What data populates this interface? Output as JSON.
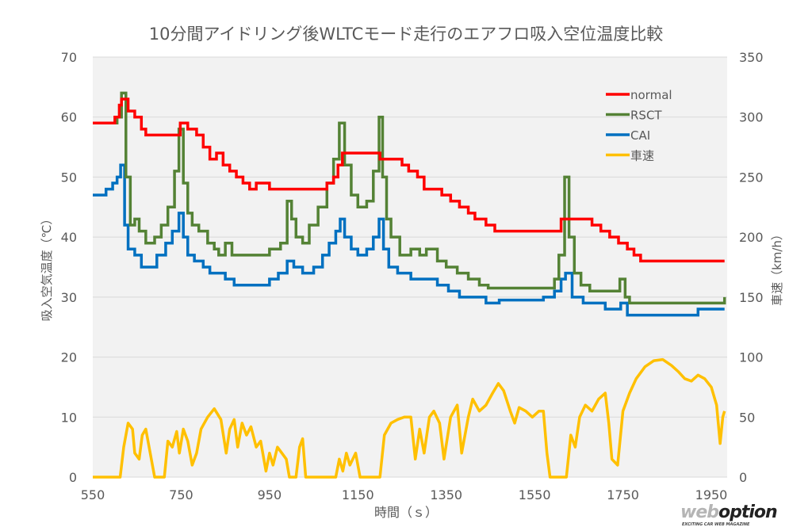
{
  "chart_data": {
    "type": "line",
    "title": "10分間アイドリング後WLTCモード走行のエアフロ吸入空位温度比較",
    "xlabel": "時間（ｓ）",
    "ylabel": "吸入空気温度（℃）",
    "y2label": "車速（km/h）",
    "xlim": [
      550,
      1980
    ],
    "ylim": [
      0,
      70
    ],
    "y2lim": [
      0,
      350
    ],
    "xticks": [
      "550",
      "750",
      "950",
      "1150",
      "1350",
      "1550",
      "1750",
      "1950"
    ],
    "yticks": [
      "0",
      "10",
      "20",
      "30",
      "40",
      "50",
      "60",
      "70"
    ],
    "y2ticks": [
      "0",
      "50",
      "100",
      "150",
      "200",
      "250",
      "300",
      "350"
    ],
    "grid": "horizontal",
    "legend": "top-right",
    "series": [
      {
        "name": "normal",
        "color": "#ff0000",
        "axis": "left",
        "points": [
          [
            550,
            59
          ],
          [
            600,
            60
          ],
          [
            610,
            62
          ],
          [
            615,
            63
          ],
          [
            630,
            61
          ],
          [
            645,
            60
          ],
          [
            660,
            58
          ],
          [
            670,
            57
          ],
          [
            740,
            57
          ],
          [
            748,
            59
          ],
          [
            765,
            58
          ],
          [
            785,
            57
          ],
          [
            800,
            55
          ],
          [
            815,
            53
          ],
          [
            830,
            54
          ],
          [
            845,
            52
          ],
          [
            860,
            51
          ],
          [
            875,
            50
          ],
          [
            890,
            49
          ],
          [
            905,
            48
          ],
          [
            920,
            49
          ],
          [
            950,
            48
          ],
          [
            1050,
            48
          ],
          [
            1080,
            49
          ],
          [
            1095,
            50
          ],
          [
            1105,
            52
          ],
          [
            1115,
            54
          ],
          [
            1190,
            54
          ],
          [
            1200,
            53
          ],
          [
            1240,
            53
          ],
          [
            1250,
            52
          ],
          [
            1265,
            51
          ],
          [
            1285,
            50
          ],
          [
            1300,
            48
          ],
          [
            1320,
            48
          ],
          [
            1340,
            47
          ],
          [
            1360,
            46
          ],
          [
            1380,
            45
          ],
          [
            1400,
            44
          ],
          [
            1415,
            43
          ],
          [
            1440,
            42
          ],
          [
            1460,
            41
          ],
          [
            1600,
            41
          ],
          [
            1610,
            43
          ],
          [
            1660,
            43
          ],
          [
            1680,
            42
          ],
          [
            1700,
            41
          ],
          [
            1720,
            40
          ],
          [
            1740,
            39
          ],
          [
            1760,
            38
          ],
          [
            1775,
            37
          ],
          [
            1790,
            36
          ],
          [
            1980,
            36
          ]
        ]
      },
      {
        "name": "RSCT",
        "color": "#548235",
        "axis": "left",
        "points": [
          [
            550,
            59
          ],
          [
            595,
            59
          ],
          [
            605,
            60
          ],
          [
            615,
            64
          ],
          [
            625,
            50
          ],
          [
            635,
            42
          ],
          [
            645,
            43
          ],
          [
            655,
            41
          ],
          [
            670,
            39
          ],
          [
            690,
            40
          ],
          [
            705,
            42
          ],
          [
            720,
            45
          ],
          [
            735,
            51
          ],
          [
            745,
            58
          ],
          [
            755,
            49
          ],
          [
            765,
            44
          ],
          [
            775,
            42
          ],
          [
            790,
            41
          ],
          [
            810,
            39
          ],
          [
            825,
            38
          ],
          [
            835,
            37
          ],
          [
            850,
            39
          ],
          [
            865,
            37
          ],
          [
            930,
            37
          ],
          [
            950,
            38
          ],
          [
            975,
            39
          ],
          [
            990,
            46
          ],
          [
            1000,
            43
          ],
          [
            1010,
            40
          ],
          [
            1025,
            39
          ],
          [
            1040,
            42
          ],
          [
            1060,
            45
          ],
          [
            1080,
            49
          ],
          [
            1095,
            53
          ],
          [
            1108,
            59
          ],
          [
            1120,
            52
          ],
          [
            1135,
            47
          ],
          [
            1150,
            45
          ],
          [
            1170,
            46
          ],
          [
            1185,
            51
          ],
          [
            1198,
            60
          ],
          [
            1206,
            50
          ],
          [
            1215,
            43
          ],
          [
            1225,
            40
          ],
          [
            1245,
            37
          ],
          [
            1270,
            38
          ],
          [
            1290,
            37
          ],
          [
            1305,
            38
          ],
          [
            1315,
            38
          ],
          [
            1330,
            36
          ],
          [
            1350,
            35
          ],
          [
            1375,
            34
          ],
          [
            1400,
            33
          ],
          [
            1425,
            32
          ],
          [
            1445,
            31.5
          ],
          [
            1580,
            31.5
          ],
          [
            1595,
            33
          ],
          [
            1605,
            37
          ],
          [
            1618,
            50
          ],
          [
            1628,
            40
          ],
          [
            1640,
            34
          ],
          [
            1655,
            32
          ],
          [
            1675,
            31
          ],
          [
            1730,
            31
          ],
          [
            1743,
            33
          ],
          [
            1755,
            30
          ],
          [
            1765,
            29
          ],
          [
            1980,
            29
          ],
          [
            1980,
            30
          ]
        ]
      },
      {
        "name": "CAI",
        "color": "#0070c0",
        "axis": "left",
        "points": [
          [
            550,
            47
          ],
          [
            580,
            48
          ],
          [
            595,
            49
          ],
          [
            605,
            50
          ],
          [
            613,
            52
          ],
          [
            622,
            42
          ],
          [
            630,
            38
          ],
          [
            645,
            37
          ],
          [
            660,
            35
          ],
          [
            680,
            35
          ],
          [
            695,
            37
          ],
          [
            715,
            39
          ],
          [
            730,
            41
          ],
          [
            745,
            44
          ],
          [
            755,
            40
          ],
          [
            765,
            37
          ],
          [
            780,
            36
          ],
          [
            800,
            35
          ],
          [
            815,
            34
          ],
          [
            835,
            34
          ],
          [
            850,
            33
          ],
          [
            870,
            32
          ],
          [
            930,
            32
          ],
          [
            950,
            33
          ],
          [
            970,
            34
          ],
          [
            990,
            36
          ],
          [
            1005,
            35
          ],
          [
            1025,
            34
          ],
          [
            1050,
            35
          ],
          [
            1070,
            37
          ],
          [
            1085,
            39
          ],
          [
            1100,
            41
          ],
          [
            1110,
            43
          ],
          [
            1120,
            40
          ],
          [
            1135,
            38
          ],
          [
            1150,
            37
          ],
          [
            1170,
            38
          ],
          [
            1185,
            40
          ],
          [
            1198,
            43
          ],
          [
            1208,
            38
          ],
          [
            1220,
            35
          ],
          [
            1240,
            34
          ],
          [
            1270,
            33
          ],
          [
            1310,
            33
          ],
          [
            1330,
            32
          ],
          [
            1355,
            31
          ],
          [
            1380,
            30
          ],
          [
            1410,
            30
          ],
          [
            1440,
            29
          ],
          [
            1470,
            29.5
          ],
          [
            1540,
            29.5
          ],
          [
            1570,
            30
          ],
          [
            1595,
            31
          ],
          [
            1610,
            33
          ],
          [
            1620,
            34
          ],
          [
            1635,
            30
          ],
          [
            1660,
            29
          ],
          [
            1690,
            29
          ],
          [
            1710,
            28
          ],
          [
            1745,
            29
          ],
          [
            1760,
            27
          ],
          [
            1900,
            27
          ],
          [
            1920,
            28
          ],
          [
            1980,
            28
          ]
        ]
      },
      {
        "name": "車速",
        "color": "#ffc000",
        "axis": "right",
        "points": [
          [
            550,
            0
          ],
          [
            612,
            0
          ],
          [
            620,
            25
          ],
          [
            630,
            45
          ],
          [
            640,
            40
          ],
          [
            645,
            20
          ],
          [
            655,
            15
          ],
          [
            662,
            35
          ],
          [
            670,
            40
          ],
          [
            680,
            20
          ],
          [
            690,
            0
          ],
          [
            712,
            0
          ],
          [
            720,
            30
          ],
          [
            730,
            25
          ],
          [
            740,
            38
          ],
          [
            746,
            20
          ],
          [
            755,
            40
          ],
          [
            765,
            30
          ],
          [
            775,
            10
          ],
          [
            785,
            20
          ],
          [
            795,
            40
          ],
          [
            810,
            50
          ],
          [
            825,
            57
          ],
          [
            840,
            48
          ],
          [
            852,
            20
          ],
          [
            860,
            40
          ],
          [
            870,
            48
          ],
          [
            878,
            25
          ],
          [
            888,
            45
          ],
          [
            898,
            35
          ],
          [
            908,
            42
          ],
          [
            920,
            25
          ],
          [
            930,
            30
          ],
          [
            942,
            5
          ],
          [
            950,
            20
          ],
          [
            958,
            10
          ],
          [
            968,
            25
          ],
          [
            978,
            20
          ],
          [
            988,
            15
          ],
          [
            995,
            0
          ],
          [
            1010,
            0
          ],
          [
            1018,
            25
          ],
          [
            1025,
            32
          ],
          [
            1032,
            0
          ],
          [
            1100,
            0
          ],
          [
            1108,
            15
          ],
          [
            1116,
            5
          ],
          [
            1124,
            20
          ],
          [
            1132,
            10
          ],
          [
            1145,
            20
          ],
          [
            1155,
            0
          ],
          [
            1200,
            0
          ],
          [
            1210,
            35
          ],
          [
            1225,
            45
          ],
          [
            1240,
            48
          ],
          [
            1255,
            50
          ],
          [
            1270,
            50
          ],
          [
            1280,
            15
          ],
          [
            1290,
            40
          ],
          [
            1300,
            20
          ],
          [
            1312,
            50
          ],
          [
            1322,
            55
          ],
          [
            1335,
            45
          ],
          [
            1345,
            15
          ],
          [
            1360,
            50
          ],
          [
            1375,
            60
          ],
          [
            1385,
            20
          ],
          [
            1400,
            50
          ],
          [
            1410,
            65
          ],
          [
            1425,
            55
          ],
          [
            1440,
            60
          ],
          [
            1455,
            70
          ],
          [
            1468,
            78
          ],
          [
            1480,
            72
          ],
          [
            1495,
            55
          ],
          [
            1505,
            45
          ],
          [
            1515,
            58
          ],
          [
            1530,
            55
          ],
          [
            1545,
            50
          ],
          [
            1560,
            55
          ],
          [
            1570,
            55
          ],
          [
            1578,
            20
          ],
          [
            1585,
            0
          ],
          [
            1622,
            0
          ],
          [
            1632,
            35
          ],
          [
            1642,
            25
          ],
          [
            1652,
            50
          ],
          [
            1665,
            60
          ],
          [
            1680,
            55
          ],
          [
            1695,
            65
          ],
          [
            1710,
            70
          ],
          [
            1718,
            45
          ],
          [
            1725,
            15
          ],
          [
            1738,
            10
          ],
          [
            1750,
            55
          ],
          [
            1765,
            70
          ],
          [
            1780,
            82
          ],
          [
            1800,
            92
          ],
          [
            1820,
            97
          ],
          [
            1840,
            98
          ],
          [
            1860,
            93
          ],
          [
            1875,
            88
          ],
          [
            1890,
            82
          ],
          [
            1905,
            80
          ],
          [
            1920,
            85
          ],
          [
            1935,
            82
          ],
          [
            1950,
            75
          ],
          [
            1962,
            60
          ],
          [
            1970,
            28
          ],
          [
            1976,
            50
          ],
          [
            1980,
            55
          ]
        ]
      }
    ]
  },
  "watermark": {
    "text_web": "web",
    "text_option": "option",
    "tagline": "EXCITING CAR WEB MAGAZINE"
  }
}
